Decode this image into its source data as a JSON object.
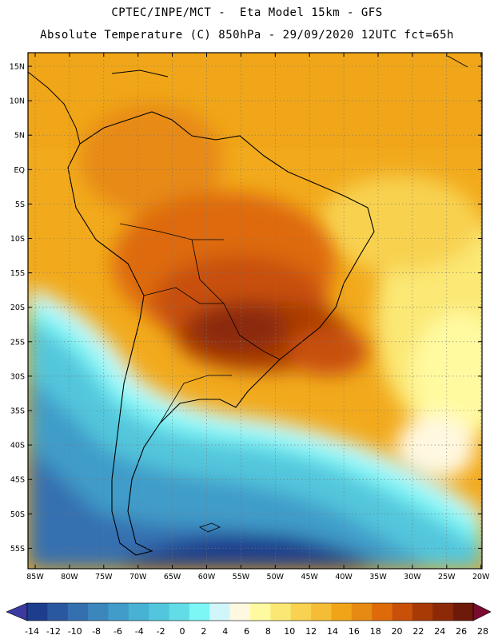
{
  "header": {
    "line1": "CPTEC/INPE/MCT -  Eta Model 15km - GFS",
    "line2": "Absolute Temperature (C) 850hPa - 29/09/2020 12UTC fct=65h"
  },
  "map": {
    "lat_labels": [
      "15N",
      "10N",
      "5N",
      "EQ",
      "5S",
      "10S",
      "15S",
      "20S",
      "25S",
      "30S",
      "35S",
      "40S",
      "45S",
      "50S",
      "55S"
    ],
    "lon_labels": [
      "85W",
      "80W",
      "75W",
      "70W",
      "65W",
      "60W",
      "55W",
      "50W",
      "45W",
      "40W",
      "35W",
      "30W",
      "25W",
      "20W"
    ],
    "field": "Absolute Temperature",
    "units": "C",
    "level": "850hPa"
  },
  "colorbar": {
    "labels": [
      "-14",
      "-12",
      "-10",
      "-8",
      "-6",
      "-4",
      "-2",
      "0",
      "2",
      "4",
      "6",
      "8",
      "10",
      "12",
      "14",
      "16",
      "18",
      "20",
      "22",
      "24",
      "26",
      "28"
    ],
    "colors": [
      "#1c3e8c",
      "#2a58a0",
      "#3470b0",
      "#3a86bd",
      "#419cc9",
      "#47b2d4",
      "#52c6dc",
      "#62dce6",
      "#7df6f6",
      "#d0f6fa",
      "#fff8e0",
      "#fffaa0",
      "#fbe874",
      "#f8d250",
      "#f5bd36",
      "#f0a518",
      "#e78a12",
      "#de6a0a",
      "#c85008",
      "#a83a06",
      "#8c2a08",
      "#6e1a0a"
    ],
    "under_color": "#3a3aa0",
    "over_color": "#7a0a30"
  }
}
